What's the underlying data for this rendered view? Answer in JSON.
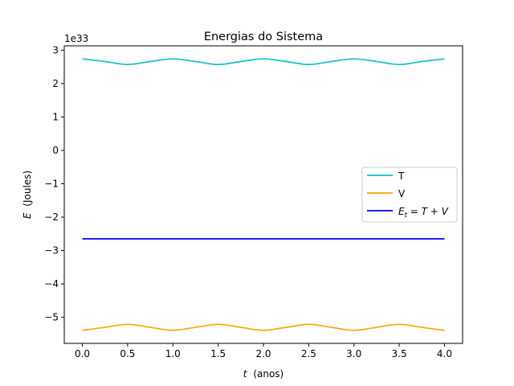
{
  "chart_data": {
    "type": "line",
    "title": "Energias do Sistema",
    "xlabel_var": "t",
    "xlabel_unit": "(anos)",
    "ylabel_var": "E",
    "ylabel_unit": "(Joules)",
    "y_offset_text": "1e33",
    "xlim": [
      -0.2,
      4.2
    ],
    "ylim": [
      -5.78,
      3.13
    ],
    "xticks": [
      0.0,
      0.5,
      1.0,
      1.5,
      2.0,
      2.5,
      3.0,
      3.5,
      4.0
    ],
    "xtick_labels": [
      "0.0",
      "0.5",
      "1.0",
      "1.5",
      "2.0",
      "2.5",
      "3.0",
      "3.5",
      "4.0"
    ],
    "yticks": [
      3,
      2,
      1,
      0,
      -1,
      -2,
      -3,
      -4,
      -5
    ],
    "ytick_labels": [
      "3",
      "2",
      "1",
      "0",
      "−1",
      "−2",
      "−3",
      "−4",
      "−5"
    ],
    "grid": false,
    "legend_position": "center-right",
    "x": [
      0.0,
      0.25,
      0.5,
      0.75,
      1.0,
      1.25,
      1.5,
      1.75,
      2.0,
      2.25,
      2.5,
      2.75,
      3.0,
      3.25,
      3.5,
      3.75,
      4.0
    ],
    "series": [
      {
        "name": "T",
        "color": "#17becf",
        "values": [
          2.74,
          2.66,
          2.57,
          2.66,
          2.74,
          2.66,
          2.57,
          2.66,
          2.74,
          2.66,
          2.57,
          2.66,
          2.74,
          2.66,
          2.57,
          2.66,
          2.74
        ]
      },
      {
        "name": "V",
        "color": "#ffa500",
        "values": [
          -5.39,
          -5.3,
          -5.21,
          -5.3,
          -5.39,
          -5.3,
          -5.21,
          -5.3,
          -5.39,
          -5.3,
          -5.21,
          -5.3,
          -5.39,
          -5.3,
          -5.21,
          -5.3,
          -5.39
        ]
      },
      {
        "name_main": "E",
        "name_sub": "t",
        "name_rest": " = T + V",
        "color": "#0000ff",
        "values": [
          -2.65,
          -2.65,
          -2.65,
          -2.65,
          -2.65,
          -2.65,
          -2.65,
          -2.65,
          -2.65,
          -2.65,
          -2.65,
          -2.65,
          -2.65,
          -2.65,
          -2.65,
          -2.65,
          -2.65
        ]
      }
    ]
  }
}
